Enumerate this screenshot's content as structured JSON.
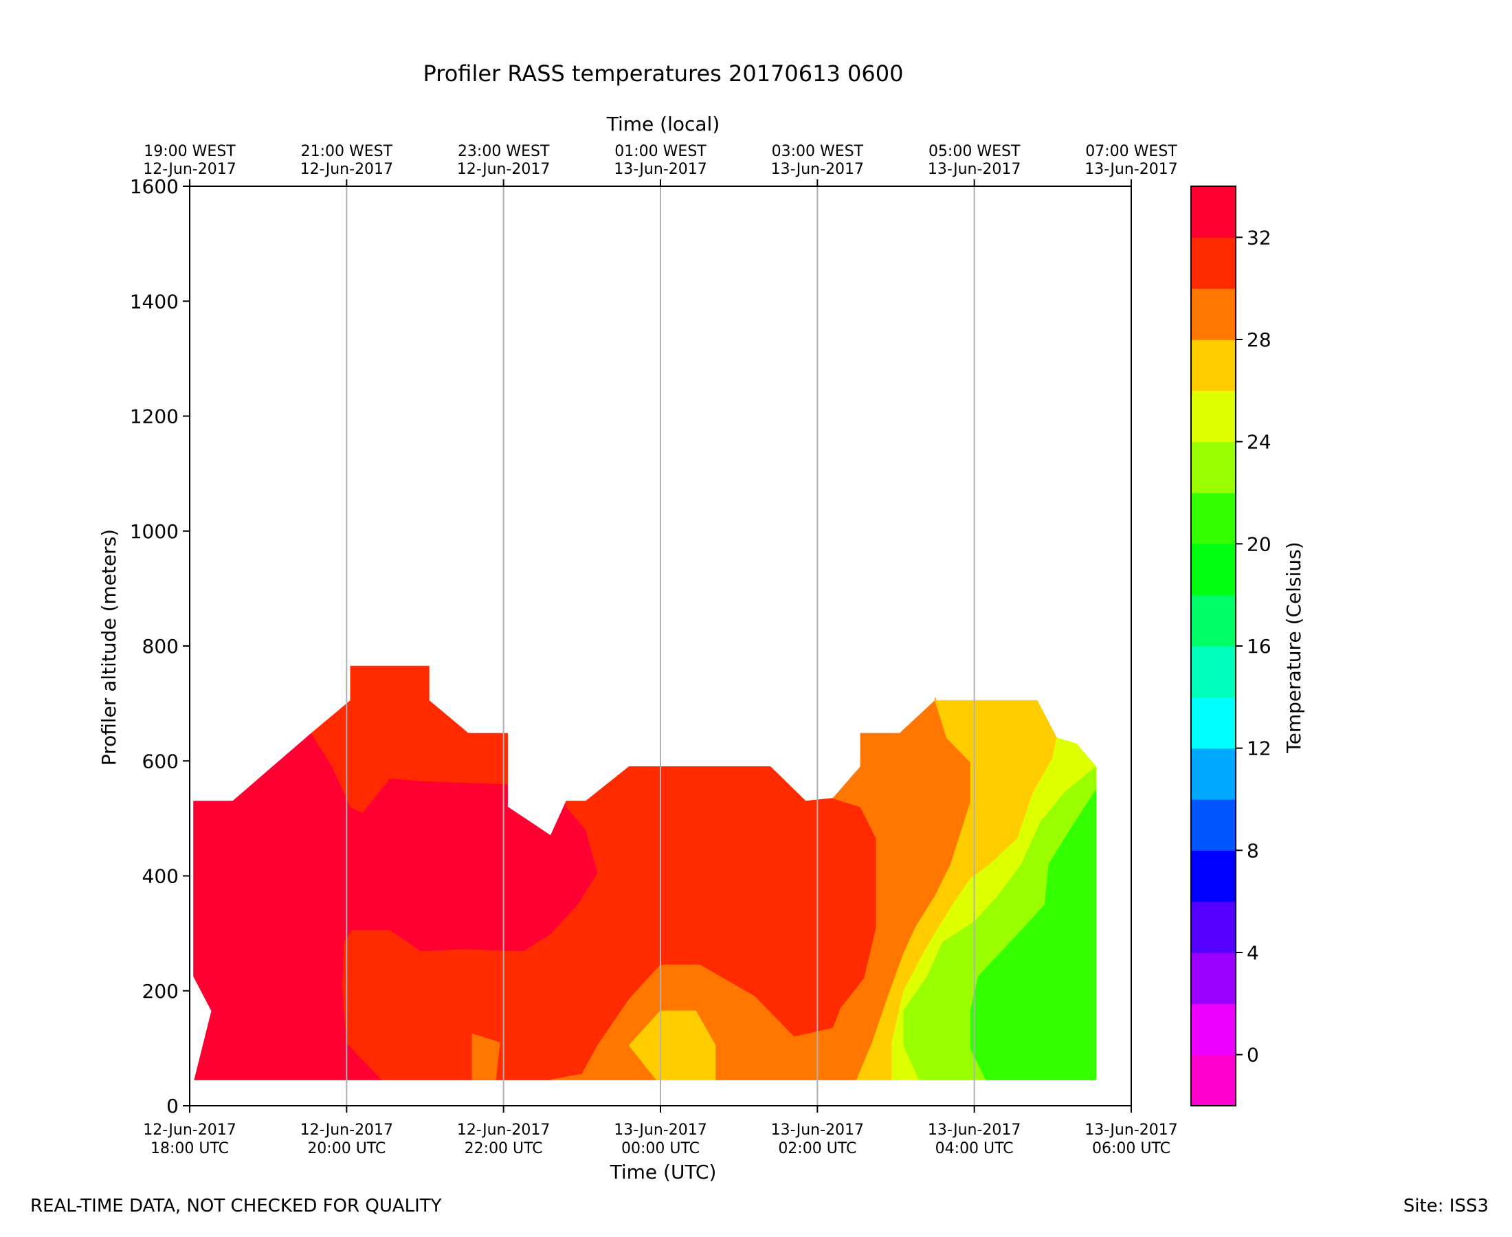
{
  "chart_data": {
    "type": "filled-contour",
    "title": "Profiler RASS temperatures 20170613 0600",
    "xlabel": "Time (UTC)",
    "xlabel_top": "Time (local)",
    "ylabel": "Profiler altitude (meters)",
    "colorbar_label": "Temperature (Celsius)",
    "x_hours_from_start": [
      0,
      12
    ],
    "ylim": [
      0,
      1600
    ],
    "yticks": [
      0,
      200,
      400,
      600,
      800,
      1000,
      1200,
      1400,
      1600
    ],
    "x_ticks_bottom": [
      {
        "hour": 0,
        "line1": "12-Jun-2017",
        "line2": "18:00 UTC"
      },
      {
        "hour": 2,
        "line1": "12-Jun-2017",
        "line2": "20:00 UTC"
      },
      {
        "hour": 4,
        "line1": "12-Jun-2017",
        "line2": "22:00 UTC"
      },
      {
        "hour": 6,
        "line1": "13-Jun-2017",
        "line2": "00:00 UTC"
      },
      {
        "hour": 8,
        "line1": "13-Jun-2017",
        "line2": "02:00 UTC"
      },
      {
        "hour": 10,
        "line1": "13-Jun-2017",
        "line2": "04:00 UTC"
      },
      {
        "hour": 12,
        "line1": "13-Jun-2017",
        "line2": "06:00 UTC"
      }
    ],
    "x_ticks_top": [
      {
        "hour": 0,
        "line1": "19:00 WEST",
        "line2": "12-Jun-2017"
      },
      {
        "hour": 2,
        "line1": "21:00 WEST",
        "line2": "12-Jun-2017"
      },
      {
        "hour": 4,
        "line1": "23:00 WEST",
        "line2": "12-Jun-2017"
      },
      {
        "hour": 6,
        "line1": "01:00 WEST",
        "line2": "13-Jun-2017"
      },
      {
        "hour": 8,
        "line1": "03:00 WEST",
        "line2": "13-Jun-2017"
      },
      {
        "hour": 10,
        "line1": "05:00 WEST",
        "line2": "13-Jun-2017"
      },
      {
        "hour": 12,
        "line1": "07:00 WEST",
        "line2": "13-Jun-2017"
      }
    ],
    "grid": "vertical lines at x ticks",
    "colorbar": {
      "range": [
        -2,
        34
      ],
      "ticks": [
        0,
        4,
        8,
        12,
        16,
        20,
        24,
        28,
        32
      ],
      "levels": [
        {
          "from": -2,
          "to": 0,
          "color": "#ff00cc"
        },
        {
          "from": 0,
          "to": 2,
          "color": "#ee00ff"
        },
        {
          "from": 2,
          "to": 4,
          "color": "#9900ff"
        },
        {
          "from": 4,
          "to": 6,
          "color": "#5500ff"
        },
        {
          "from": 6,
          "to": 8,
          "color": "#0000ff"
        },
        {
          "from": 8,
          "to": 10,
          "color": "#0055ff"
        },
        {
          "from": 10,
          "to": 12,
          "color": "#00a8ff"
        },
        {
          "from": 12,
          "to": 14,
          "color": "#00ffff"
        },
        {
          "from": 14,
          "to": 16,
          "color": "#00ffbb"
        },
        {
          "from": 16,
          "to": 18,
          "color": "#00ff66"
        },
        {
          "from": 18,
          "to": 20,
          "color": "#00ff11"
        },
        {
          "from": 20,
          "to": 22,
          "color": "#33ff00"
        },
        {
          "from": 22,
          "to": 24,
          "color": "#99ff00"
        },
        {
          "from": 24,
          "to": 26,
          "color": "#ddff00"
        },
        {
          "from": 26,
          "to": 28,
          "color": "#ffcc00"
        },
        {
          "from": 28,
          "to": 30,
          "color": "#ff7700"
        },
        {
          "from": 30,
          "to": 32,
          "color": "#ff2a00"
        },
        {
          "from": 32,
          "to": 34,
          "color": "#ff0033"
        }
      ]
    },
    "regions": [
      {
        "name": "band-32-34-west",
        "level_color": "#ff0033",
        "range_c": [
          32,
          34
        ],
        "points": [
          [
            0.06,
            45
          ],
          [
            0.33,
            45
          ],
          [
            2.45,
            45
          ],
          [
            2.0,
            110
          ],
          [
            1.95,
            205
          ],
          [
            1.97,
            285
          ],
          [
            2.07,
            305
          ],
          [
            2.55,
            305
          ],
          [
            2.95,
            268
          ],
          [
            3.5,
            272
          ],
          [
            4.25,
            268
          ],
          [
            4.6,
            298
          ],
          [
            4.95,
            350
          ],
          [
            5.2,
            405
          ],
          [
            5.05,
            480
          ],
          [
            4.8,
            520
          ],
          [
            4.8,
            530
          ],
          [
            4.6,
            470
          ],
          [
            4.05,
            520
          ],
          [
            4.05,
            560
          ],
          [
            3.0,
            565
          ],
          [
            2.55,
            570
          ],
          [
            2.2,
            510
          ],
          [
            2.05,
            520
          ],
          [
            1.82,
            590
          ],
          [
            1.55,
            648
          ],
          [
            0.55,
            530
          ],
          [
            0.05,
            530
          ],
          [
            0.05,
            225
          ],
          [
            0.28,
            165
          ]
        ]
      },
      {
        "name": "band-30-32-central",
        "level_color": "#ff2a00",
        "range_c": [
          30,
          32
        ],
        "points": [
          [
            2.45,
            45
          ],
          [
            3.6,
            45
          ],
          [
            3.9,
            45
          ],
          [
            4.6,
            45
          ],
          [
            5.0,
            55
          ],
          [
            5.2,
            105
          ],
          [
            5.6,
            185
          ],
          [
            6.0,
            245
          ],
          [
            6.5,
            245
          ],
          [
            7.2,
            190
          ],
          [
            7.7,
            120
          ],
          [
            8.2,
            135
          ],
          [
            8.3,
            170
          ],
          [
            8.6,
            222
          ],
          [
            8.75,
            310
          ],
          [
            8.75,
            465
          ],
          [
            8.55,
            520
          ],
          [
            8.2,
            535
          ],
          [
            7.85,
            530
          ],
          [
            7.4,
            590
          ],
          [
            5.6,
            590
          ],
          [
            5.05,
            530
          ],
          [
            4.8,
            530
          ],
          [
            4.8,
            520
          ],
          [
            5.05,
            480
          ],
          [
            5.2,
            405
          ],
          [
            4.95,
            350
          ],
          [
            4.6,
            298
          ],
          [
            4.25,
            268
          ],
          [
            3.5,
            272
          ],
          [
            2.95,
            268
          ],
          [
            2.55,
            305
          ],
          [
            2.07,
            305
          ],
          [
            1.97,
            285
          ],
          [
            1.95,
            205
          ],
          [
            2.0,
            110
          ]
        ]
      },
      {
        "name": "band-30-32-north",
        "level_color": "#ff2a00",
        "range_c": [
          30,
          32
        ],
        "points": [
          [
            1.55,
            648
          ],
          [
            2.05,
            705
          ],
          [
            2.05,
            765
          ],
          [
            3.05,
            765
          ],
          [
            3.05,
            705
          ],
          [
            3.55,
            648
          ],
          [
            4.05,
            648
          ],
          [
            4.05,
            560
          ],
          [
            3.0,
            565
          ],
          [
            2.55,
            570
          ],
          [
            2.2,
            510
          ],
          [
            2.05,
            520
          ],
          [
            1.82,
            590
          ]
        ]
      },
      {
        "name": "band-28-30-pocket",
        "level_color": "#ff7700",
        "range_c": [
          28,
          30
        ],
        "points": [
          [
            3.6,
            45
          ],
          [
            3.9,
            45
          ],
          [
            3.95,
            110
          ],
          [
            3.6,
            125
          ]
        ]
      },
      {
        "name": "band-28-30-center",
        "level_color": "#ff7700",
        "range_c": [
          28,
          30
        ],
        "points": [
          [
            4.6,
            45
          ],
          [
            5.95,
            45
          ],
          [
            5.6,
            105
          ],
          [
            6.0,
            165
          ],
          [
            6.45,
            165
          ],
          [
            6.7,
            105
          ],
          [
            6.7,
            45
          ],
          [
            8.5,
            45
          ],
          [
            8.7,
            110
          ],
          [
            8.9,
            190
          ],
          [
            9.1,
            265
          ],
          [
            9.25,
            310
          ],
          [
            9.5,
            365
          ],
          [
            9.7,
            420
          ],
          [
            9.95,
            528
          ],
          [
            9.95,
            598
          ],
          [
            9.65,
            640
          ],
          [
            9.5,
            710
          ],
          [
            9.5,
            705
          ],
          [
            9.05,
            648
          ],
          [
            8.55,
            648
          ],
          [
            8.55,
            590
          ],
          [
            8.2,
            535
          ],
          [
            8.55,
            520
          ],
          [
            8.75,
            465
          ],
          [
            8.75,
            310
          ],
          [
            8.6,
            222
          ],
          [
            8.3,
            170
          ],
          [
            8.2,
            135
          ],
          [
            7.7,
            120
          ],
          [
            7.2,
            190
          ],
          [
            6.5,
            245
          ],
          [
            6.0,
            245
          ],
          [
            5.6,
            185
          ],
          [
            5.2,
            105
          ],
          [
            5.0,
            55
          ]
        ]
      },
      {
        "name": "band-26-28-center",
        "level_color": "#ffcc00",
        "range_c": [
          26,
          28
        ],
        "points": [
          [
            5.95,
            45
          ],
          [
            6.7,
            45
          ],
          [
            6.7,
            105
          ],
          [
            6.45,
            165
          ],
          [
            6.0,
            165
          ],
          [
            5.6,
            105
          ]
        ]
      },
      {
        "name": "band-26-28-east",
        "level_color": "#ffcc00",
        "range_c": [
          26,
          28
        ],
        "points": [
          [
            8.5,
            45
          ],
          [
            8.95,
            45
          ],
          [
            8.95,
            110
          ],
          [
            9.1,
            200
          ],
          [
            9.35,
            265
          ],
          [
            9.5,
            300
          ],
          [
            9.75,
            355
          ],
          [
            9.95,
            395
          ],
          [
            10.2,
            420
          ],
          [
            10.55,
            465
          ],
          [
            10.75,
            545
          ],
          [
            11.0,
            605
          ],
          [
            11.05,
            640
          ],
          [
            10.8,
            705
          ],
          [
            9.5,
            705
          ],
          [
            9.65,
            640
          ],
          [
            9.95,
            598
          ],
          [
            9.95,
            528
          ],
          [
            9.7,
            420
          ],
          [
            9.5,
            365
          ],
          [
            9.25,
            310
          ],
          [
            9.1,
            265
          ],
          [
            8.9,
            190
          ],
          [
            8.7,
            110
          ]
        ]
      },
      {
        "name": "band-24-26-east",
        "level_color": "#ddff00",
        "range_c": [
          24,
          26
        ],
        "points": [
          [
            8.95,
            45
          ],
          [
            9.3,
            45
          ],
          [
            9.1,
            105
          ],
          [
            9.1,
            165
          ],
          [
            9.4,
            225
          ],
          [
            9.6,
            285
          ],
          [
            10.0,
            320
          ],
          [
            10.3,
            365
          ],
          [
            10.6,
            420
          ],
          [
            10.85,
            495
          ],
          [
            11.15,
            545
          ],
          [
            11.55,
            590
          ],
          [
            11.3,
            630
          ],
          [
            11.05,
            640
          ],
          [
            11.0,
            605
          ],
          [
            10.75,
            545
          ],
          [
            10.55,
            465
          ],
          [
            10.2,
            420
          ],
          [
            9.95,
            395
          ],
          [
            9.75,
            355
          ],
          [
            9.5,
            300
          ],
          [
            9.35,
            265
          ],
          [
            9.1,
            200
          ],
          [
            8.95,
            110
          ]
        ]
      },
      {
        "name": "band-22-24-east",
        "level_color": "#99ff00",
        "range_c": [
          22,
          24
        ],
        "points": [
          [
            9.3,
            45
          ],
          [
            10.15,
            45
          ],
          [
            9.95,
            100
          ],
          [
            9.95,
            165
          ],
          [
            10.05,
            225
          ],
          [
            10.6,
            305
          ],
          [
            10.9,
            350
          ],
          [
            10.95,
            420
          ],
          [
            11.15,
            465
          ],
          [
            11.55,
            550
          ],
          [
            11.55,
            590
          ],
          [
            11.15,
            545
          ],
          [
            10.85,
            495
          ],
          [
            10.6,
            420
          ],
          [
            10.3,
            365
          ],
          [
            10.0,
            320
          ],
          [
            9.6,
            285
          ],
          [
            9.4,
            225
          ],
          [
            9.1,
            165
          ],
          [
            9.1,
            105
          ]
        ]
      },
      {
        "name": "band-20-22-east",
        "level_color": "#33ff00",
        "range_c": [
          20,
          22
        ],
        "points": [
          [
            10.15,
            45
          ],
          [
            11.55,
            45
          ],
          [
            11.55,
            550
          ],
          [
            11.15,
            465
          ],
          [
            10.95,
            420
          ],
          [
            10.9,
            350
          ],
          [
            10.6,
            305
          ],
          [
            10.05,
            225
          ],
          [
            9.95,
            165
          ],
          [
            9.95,
            100
          ]
        ]
      }
    ]
  },
  "footer": {
    "left": "REAL-TIME DATA, NOT CHECKED FOR QUALITY",
    "right": "Site: ISS3"
  }
}
